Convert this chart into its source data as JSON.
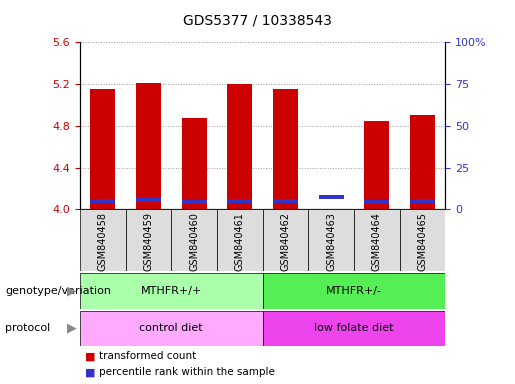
{
  "title": "GDS5377 / 10338543",
  "samples": [
    "GSM840458",
    "GSM840459",
    "GSM840460",
    "GSM840461",
    "GSM840462",
    "GSM840463",
    "GSM840464",
    "GSM840465"
  ],
  "red_bar_tops": [
    5.15,
    5.21,
    4.87,
    5.2,
    5.15,
    4.0,
    4.85,
    4.9
  ],
  "blue_marker_values": [
    4.08,
    4.09,
    4.07,
    4.08,
    4.08,
    4.12,
    4.07,
    4.08
  ],
  "bar_base": 4.0,
  "ylim_left": [
    4.0,
    5.6
  ],
  "ylim_right": [
    0,
    100
  ],
  "yticks_left": [
    4.0,
    4.4,
    4.8,
    5.2,
    5.6
  ],
  "yticks_right": [
    0,
    25,
    50,
    75,
    100
  ],
  "ytick_labels_right": [
    "0",
    "25",
    "50",
    "75",
    "100%"
  ],
  "bar_color": "#cc0000",
  "blue_color": "#3333cc",
  "bar_width": 0.55,
  "genotype_groups": [
    {
      "label": "MTHFR+/+",
      "start": 0,
      "end": 3,
      "color": "#aaffaa"
    },
    {
      "label": "MTHFR+/-",
      "start": 4,
      "end": 7,
      "color": "#55ee55"
    }
  ],
  "protocol_groups": [
    {
      "label": "control diet",
      "start": 0,
      "end": 3,
      "color": "#ffaaff"
    },
    {
      "label": "low folate diet",
      "start": 4,
      "end": 7,
      "color": "#ee44ee"
    }
  ],
  "legend_items": [
    {
      "label": "transformed count",
      "color": "#cc0000"
    },
    {
      "label": "percentile rank within the sample",
      "color": "#3333cc"
    }
  ],
  "left_tick_color": "#cc0000",
  "right_tick_color": "#3333cc",
  "grid_color": "#999999",
  "sample_box_color": "#dddddd",
  "genotype_label": "genotype/variation",
  "protocol_label": "protocol"
}
